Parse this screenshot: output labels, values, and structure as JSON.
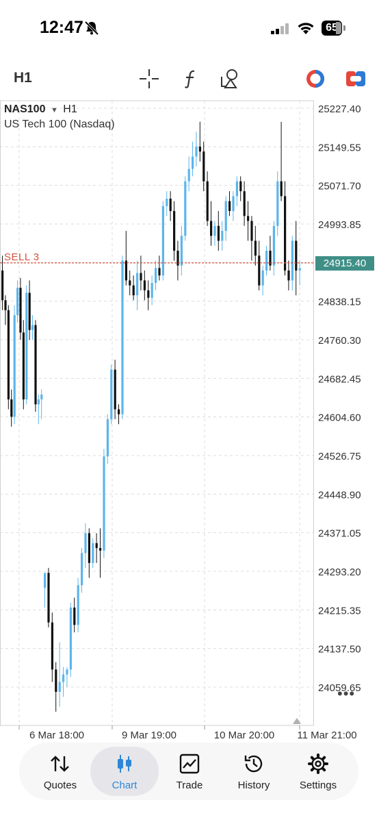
{
  "status": {
    "time": "12:47",
    "battery": "65"
  },
  "toolbar": {
    "timeframe": "H1"
  },
  "symbol": {
    "name": "NAS100",
    "timeframe": "H1",
    "description": "US Tech 100 (Nasdaq)"
  },
  "order_line": {
    "label": "SELL 3",
    "price": "24915.40",
    "color": "#d0523f"
  },
  "colors": {
    "bull": "#5bb5ec",
    "bear": "#111111",
    "grid": "#dcdcdc",
    "accent": "#2f86d6",
    "price_tag": "#3f8f87"
  },
  "chart_data": {
    "type": "candlestick",
    "y_ticks": [
      "25227.40",
      "25149.55",
      "25071.70",
      "24993.85",
      "24915.40",
      "24838.15",
      "24760.30",
      "24682.45",
      "24604.60",
      "24526.75",
      "24448.90",
      "24371.05",
      "24293.20",
      "24215.35",
      "24137.50",
      "24059.65"
    ],
    "x_ticks": [
      "6 Mar 18:00",
      "9 Mar 19:00",
      "10 Mar 20:00",
      "11 Mar 21:00"
    ],
    "ylim": [
      23990,
      25255
    ],
    "candles": [
      [
        24900,
        24930,
        24820,
        24840
      ],
      [
        24840,
        24850,
        24790,
        24820
      ],
      [
        24820,
        24830,
        24620,
        24640
      ],
      [
        24640,
        24660,
        24585,
        24605
      ],
      [
        24605,
        24830,
        24590,
        24810
      ],
      [
        24810,
        24880,
        24795,
        24865
      ],
      [
        24865,
        24885,
        24760,
        24775
      ],
      [
        24775,
        24800,
        24620,
        24640
      ],
      [
        24640,
        24870,
        24630,
        24855
      ],
      [
        24855,
        24880,
        24760,
        24780
      ],
      [
        24780,
        24810,
        24760,
        24790
      ],
      [
        24790,
        24800,
        24615,
        24630
      ],
      [
        24630,
        24650,
        24590,
        24640
      ],
      [
        24640,
        24660,
        24600,
        24650
      ],
      [
        24260,
        24290,
        24220,
        24290
      ],
      [
        24290,
        24300,
        24180,
        24190
      ],
      [
        24190,
        24210,
        24070,
        24095
      ],
      [
        24095,
        24110,
        24010,
        24050
      ],
      [
        24050,
        24150,
        24020,
        24070
      ],
      [
        24070,
        24100,
        24040,
        24085
      ],
      [
        24085,
        24100,
        24060,
        24095
      ],
      [
        24095,
        24230,
        24080,
        24220
      ],
      [
        24220,
        24240,
        24170,
        24185
      ],
      [
        24185,
        24280,
        24170,
        24265
      ],
      [
        24265,
        24340,
        24250,
        24330
      ],
      [
        24330,
        24390,
        24300,
        24370
      ],
      [
        24370,
        24380,
        24280,
        24310
      ],
      [
        24310,
        24360,
        24300,
        24350
      ],
      [
        24350,
        24370,
        24310,
        24340
      ],
      [
        24340,
        24380,
        24280,
        24335
      ],
      [
        24335,
        24540,
        24320,
        24525
      ],
      [
        24525,
        24610,
        24510,
        24600
      ],
      [
        24600,
        24710,
        24590,
        24700
      ],
      [
        24700,
        24720,
        24600,
        24620
      ],
      [
        24620,
        24630,
        24590,
        24610
      ],
      [
        24610,
        24930,
        24600,
        24920
      ],
      [
        24920,
        24980,
        24870,
        24880
      ],
      [
        24880,
        24900,
        24850,
        24870
      ],
      [
        24870,
        24890,
        24840,
        24850
      ],
      [
        24850,
        24920,
        24820,
        24895
      ],
      [
        24895,
        24930,
        24860,
        24880
      ],
      [
        24880,
        24900,
        24840,
        24860
      ],
      [
        24860,
        24880,
        24820,
        24845
      ],
      [
        24845,
        24890,
        24830,
        24875
      ],
      [
        24875,
        24920,
        24860,
        24905
      ],
      [
        24905,
        24930,
        24880,
        24890
      ],
      [
        24890,
        25040,
        24880,
        25030
      ],
      [
        25030,
        25060,
        25010,
        25045
      ],
      [
        25045,
        25060,
        25000,
        25020
      ],
      [
        25020,
        25040,
        24920,
        24940
      ],
      [
        24940,
        24960,
        24880,
        24910
      ],
      [
        24910,
        24990,
        24890,
        24970
      ],
      [
        24970,
        25090,
        24960,
        25080
      ],
      [
        25080,
        25130,
        25060,
        25105
      ],
      [
        25105,
        25160,
        25090,
        25130
      ],
      [
        25130,
        25180,
        25110,
        25150
      ],
      [
        25150,
        25200,
        25120,
        25140
      ],
      [
        25140,
        25160,
        25060,
        25080
      ],
      [
        25080,
        25100,
        24990,
        25000
      ],
      [
        25000,
        25040,
        24950,
        24970
      ],
      [
        24970,
        25000,
        24950,
        24990
      ],
      [
        24990,
        25020,
        24940,
        24960
      ],
      [
        24960,
        25000,
        24940,
        24980
      ],
      [
        24980,
        25050,
        24960,
        25040
      ],
      [
        25040,
        25060,
        25010,
        25020
      ],
      [
        25020,
        25060,
        25000,
        25050
      ],
      [
        25050,
        25090,
        25030,
        25080
      ],
      [
        25080,
        25090,
        25040,
        25060
      ],
      [
        25060,
        25080,
        24990,
        25010
      ],
      [
        25010,
        25040,
        24960,
        25000
      ],
      [
        25000,
        25010,
        24920,
        24960
      ],
      [
        24960,
        24990,
        24910,
        24930
      ],
      [
        24930,
        24960,
        24860,
        24870
      ],
      [
        24870,
        24910,
        24850,
        24900
      ],
      [
        24900,
        24950,
        24890,
        24940
      ],
      [
        24940,
        24970,
        24900,
        24910
      ],
      [
        24910,
        25000,
        24890,
        24990
      ],
      [
        24990,
        25100,
        24970,
        25080
      ],
      [
        25080,
        25200,
        25040,
        25050
      ],
      [
        25050,
        25080,
        24890,
        24900
      ],
      [
        24900,
        24920,
        24860,
        24880
      ],
      [
        24880,
        24970,
        24860,
        24960
      ],
      [
        24960,
        25000,
        24850,
        24900
      ],
      [
        24900,
        24920,
        24870,
        24905
      ]
    ]
  },
  "tabs": [
    {
      "label": "Quotes"
    },
    {
      "label": "Chart"
    },
    {
      "label": "Trade"
    },
    {
      "label": "History"
    },
    {
      "label": "Settings"
    }
  ]
}
